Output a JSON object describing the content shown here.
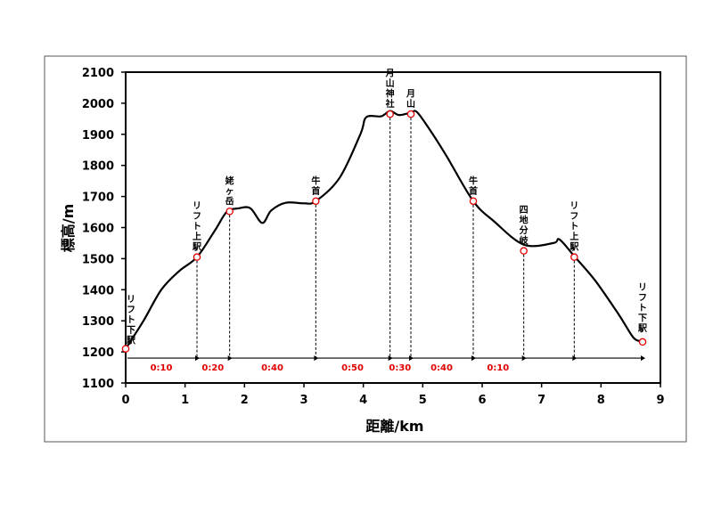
{
  "chart_data": {
    "type": "line",
    "title": "",
    "xlabel": "距離/km",
    "ylabel": "標高/m",
    "xlim": [
      0,
      9
    ],
    "ylim": [
      1100,
      2100
    ],
    "xticks": [
      0,
      1,
      2,
      3,
      4,
      5,
      6,
      7,
      8,
      9
    ],
    "yticks": [
      1100,
      1200,
      1300,
      1400,
      1500,
      1600,
      1700,
      1800,
      1900,
      2000,
      2100
    ],
    "grid": false,
    "series": [
      {
        "values": [
          {
            "x": 0.0,
            "y": 1210
          },
          {
            "x": 0.3,
            "y": 1300
          },
          {
            "x": 0.6,
            "y": 1400
          },
          {
            "x": 0.9,
            "y": 1460
          },
          {
            "x": 1.2,
            "y": 1505
          },
          {
            "x": 1.5,
            "y": 1590
          },
          {
            "x": 1.7,
            "y": 1650
          },
          {
            "x": 1.9,
            "y": 1662
          },
          {
            "x": 2.1,
            "y": 1662
          },
          {
            "x": 2.3,
            "y": 1615
          },
          {
            "x": 2.45,
            "y": 1655
          },
          {
            "x": 2.7,
            "y": 1680
          },
          {
            "x": 3.0,
            "y": 1678
          },
          {
            "x": 3.2,
            "y": 1685
          },
          {
            "x": 3.6,
            "y": 1760
          },
          {
            "x": 3.95,
            "y": 1900
          },
          {
            "x": 4.05,
            "y": 1955
          },
          {
            "x": 4.3,
            "y": 1958
          },
          {
            "x": 4.45,
            "y": 1975
          },
          {
            "x": 4.6,
            "y": 1962
          },
          {
            "x": 4.8,
            "y": 1970
          },
          {
            "x": 4.9,
            "y": 1972
          },
          {
            "x": 5.1,
            "y": 1920
          },
          {
            "x": 5.4,
            "y": 1830
          },
          {
            "x": 5.85,
            "y": 1685
          },
          {
            "x": 6.2,
            "y": 1620
          },
          {
            "x": 6.7,
            "y": 1545
          },
          {
            "x": 7.2,
            "y": 1550
          },
          {
            "x": 7.3,
            "y": 1562
          },
          {
            "x": 7.55,
            "y": 1508
          },
          {
            "x": 7.9,
            "y": 1430
          },
          {
            "x": 8.3,
            "y": 1320
          },
          {
            "x": 8.55,
            "y": 1245
          },
          {
            "x": 8.7,
            "y": 1235
          }
        ]
      }
    ],
    "waypoints": [
      {
        "x": 0.0,
        "y": 1210,
        "label": "リフト下駅"
      },
      {
        "x": 1.2,
        "y": 1505,
        "label": "リフト上駅"
      },
      {
        "x": 1.75,
        "y": 1652,
        "label": "姥ヶ岳"
      },
      {
        "x": 3.2,
        "y": 1685,
        "label": "牛首"
      },
      {
        "x": 4.45,
        "y": 1965,
        "label": "月山神社"
      },
      {
        "x": 4.8,
        "y": 1965,
        "label": "月山"
      },
      {
        "x": 5.85,
        "y": 1685,
        "label": "牛首"
      },
      {
        "x": 6.7,
        "y": 1525,
        "label": "四地分岐"
      },
      {
        "x": 7.55,
        "y": 1505,
        "label": "リフト上駅"
      },
      {
        "x": 8.7,
        "y": 1232,
        "label": "リフト下駅"
      }
    ],
    "segment_times": [
      "0:10",
      "0:20",
      "0:40",
      "0:50",
      "0:30",
      "0:40",
      "0:10"
    ],
    "colors": {
      "line": "#000000",
      "marker": "#e00000",
      "segment_label": "#e00000"
    }
  }
}
